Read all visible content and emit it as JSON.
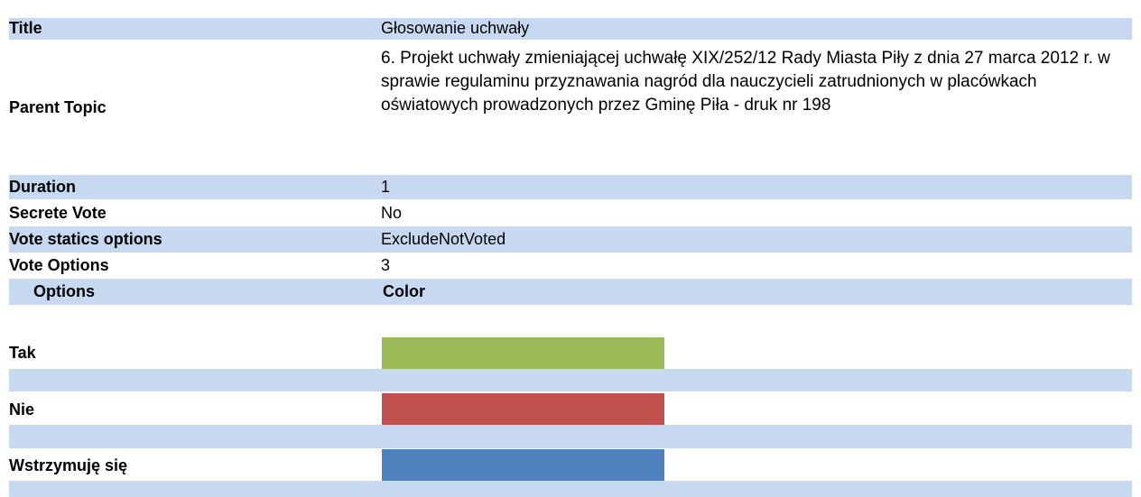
{
  "details": [
    {
      "label": "Title",
      "value": "Głosowanie uchwały"
    },
    {
      "label": "Parent Topic",
      "value": "6. Projekt uchwały zmieniającej uchwałę XIX/252/12 Rady Miasta Piły z dnia 27 marca 2012 r. w sprawie regulaminu przyznawania nagród dla nauczycieli zatrudnionych w placówkach oświatowych prowadzonych przez Gminę Piła - druk nr 198"
    },
    {
      "label": "Duration",
      "value": "1"
    },
    {
      "label": "Secrete Vote",
      "value": "No"
    },
    {
      "label": "Vote statics options",
      "value": "ExcludeNotVoted"
    },
    {
      "label": "Vote Options",
      "value": "3"
    }
  ],
  "options_table": {
    "headers": [
      "Options",
      "Color"
    ],
    "rows": [
      {
        "name": "Tak",
        "color": "#9bbb59"
      },
      {
        "name": "Nie",
        "color": "#c0504d"
      },
      {
        "name": "Wstrzymuję się",
        "color": "#4f81bd"
      }
    ]
  }
}
